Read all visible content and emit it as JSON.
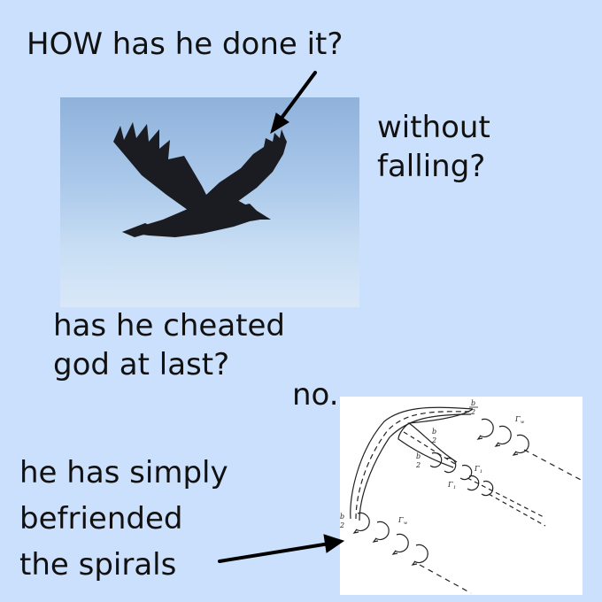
{
  "caption": {
    "question_how": "HOW has he done it?",
    "question_without": [
      "without",
      "falling?"
    ],
    "question_cheated": [
      "has he cheated",
      "god at last?"
    ],
    "answer_no": "no.",
    "answer_spirals": [
      "he has simply",
      "befriended",
      "the spirals"
    ]
  },
  "diagram": {
    "label_bw2": "b",
    "label_b2": "b",
    "label_den": "2",
    "label_gamma_w": "Γ",
    "label_gamma_1": "Γ",
    "sub_w": "w",
    "sub_1": "1"
  },
  "colors": {
    "background": "#cbe0fc",
    "sky_top": "#8fb2db",
    "sky_bottom": "#d9e8f8",
    "bird": "#1a1c22"
  }
}
